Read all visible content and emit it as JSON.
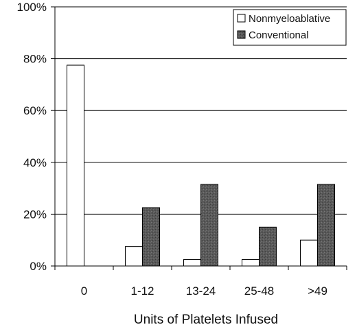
{
  "chart_data": {
    "type": "bar",
    "title": "",
    "xlabel": "Units of Platelets Infused",
    "ylabel": "",
    "categories": [
      "0",
      "1-12",
      "13-24",
      "25-48",
      ">49"
    ],
    "series": [
      {
        "name": "Nonmyeloablative",
        "values": [
          77.5,
          7.5,
          2.5,
          2.5,
          10
        ],
        "color": "#ffffff"
      },
      {
        "name": "Conventional",
        "values": [
          0,
          22.5,
          31.5,
          15,
          31.5
        ],
        "color": "#555555"
      }
    ],
    "ylim": [
      0,
      100
    ],
    "yticks": [
      "0%",
      "20%",
      "40%",
      "60%",
      "80%",
      "100%"
    ],
    "grid": true,
    "legend": "top-right"
  }
}
